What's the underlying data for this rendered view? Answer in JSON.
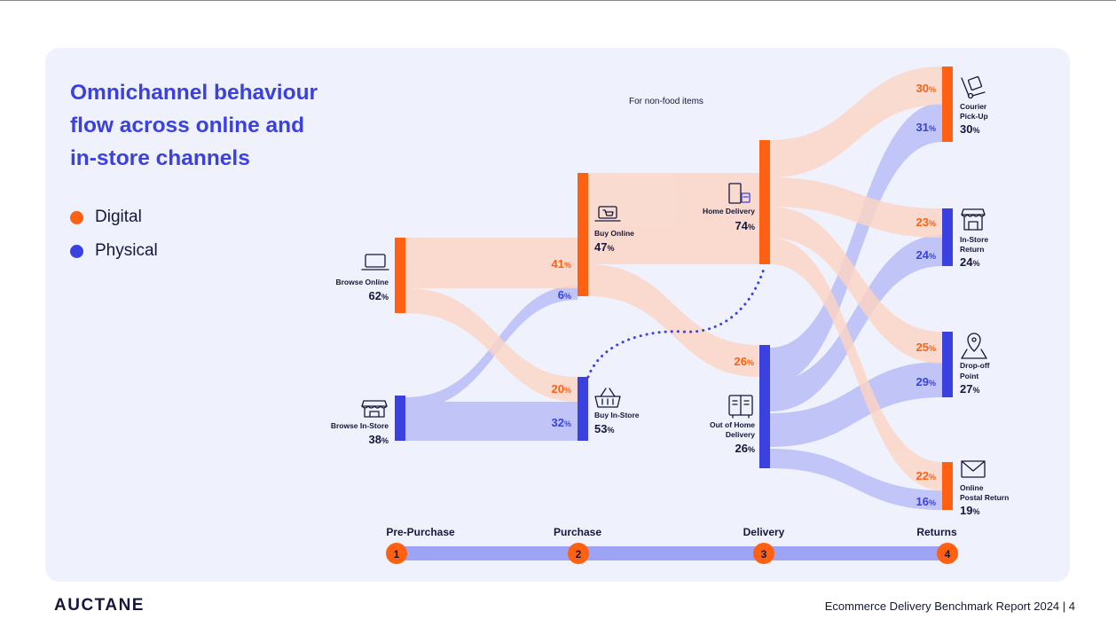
{
  "title_lines": [
    "Omnichannel behaviour",
    "flow across online and",
    "in-store channels"
  ],
  "legend": [
    {
      "label": "Digital",
      "color": "#ff6012"
    },
    {
      "label": "Physical",
      "color": "#3a41e0"
    }
  ],
  "note": "For non-food items",
  "nodes": {
    "browse_online": {
      "label": "Browse Online",
      "value": "62",
      "icon": "laptop-icon"
    },
    "browse_instore": {
      "label": "Browse In-Store",
      "value": "38",
      "icon": "store-icon"
    },
    "buy_online": {
      "label": "Buy Online",
      "value": "47",
      "icon": "laptop-cart-icon"
    },
    "buy_instore": {
      "label": "Buy In-Store",
      "value": "53",
      "icon": "basket-icon"
    },
    "home_delivery": {
      "label": "Home Delivery",
      "value": "74",
      "icon": "door-parcel-icon"
    },
    "out_of_home": {
      "label_line1": "Out of Home",
      "label_line2": "Delivery",
      "value": "26",
      "icon": "locker-icon"
    },
    "courier": {
      "label_line1": "Courier",
      "label_line2": "Pick-Up",
      "value": "30",
      "icon": "hand-truck-icon"
    },
    "instore_return": {
      "label_line1": "In-Store",
      "label_line2": "Return",
      "value": "24",
      "icon": "store-icon"
    },
    "dropoff": {
      "label_line1": "Drop-off",
      "label_line2": "Point",
      "value": "27",
      "icon": "map-pin-icon"
    },
    "postal": {
      "label_line1": "Online",
      "label_line2": "Postal Return",
      "value": "19",
      "icon": "envelope-icon"
    }
  },
  "flow_values": {
    "bo_to_buyonline": "41",
    "bi_to_buyonline": "6",
    "bo_to_buyinstore": "20",
    "bi_to_buyinstore": "32",
    "to_outofhome": "26",
    "courier_digital": "30",
    "courier_physical": "31",
    "instore_digital": "23",
    "instore_physical": "24",
    "dropoff_digital": "25",
    "dropoff_physical": "29",
    "postal_digital": "22",
    "postal_physical": "16"
  },
  "percent_sign": "%",
  "stages": [
    {
      "number": "1",
      "label": "Pre-Purchase"
    },
    {
      "number": "2",
      "label": "Purchase"
    },
    {
      "number": "3",
      "label": "Delivery"
    },
    {
      "number": "4",
      "label": "Returns"
    }
  ],
  "colors": {
    "digital": "#ff6012",
    "physical": "#3a41e0",
    "digital_flow": "#fdd5c4",
    "physical_flow": "#b9bdf6",
    "stage_bar": "#9ea3f4"
  },
  "brand": "AUCTANE",
  "footer": "Ecommerce Delivery Benchmark Report 2024 | 4"
}
